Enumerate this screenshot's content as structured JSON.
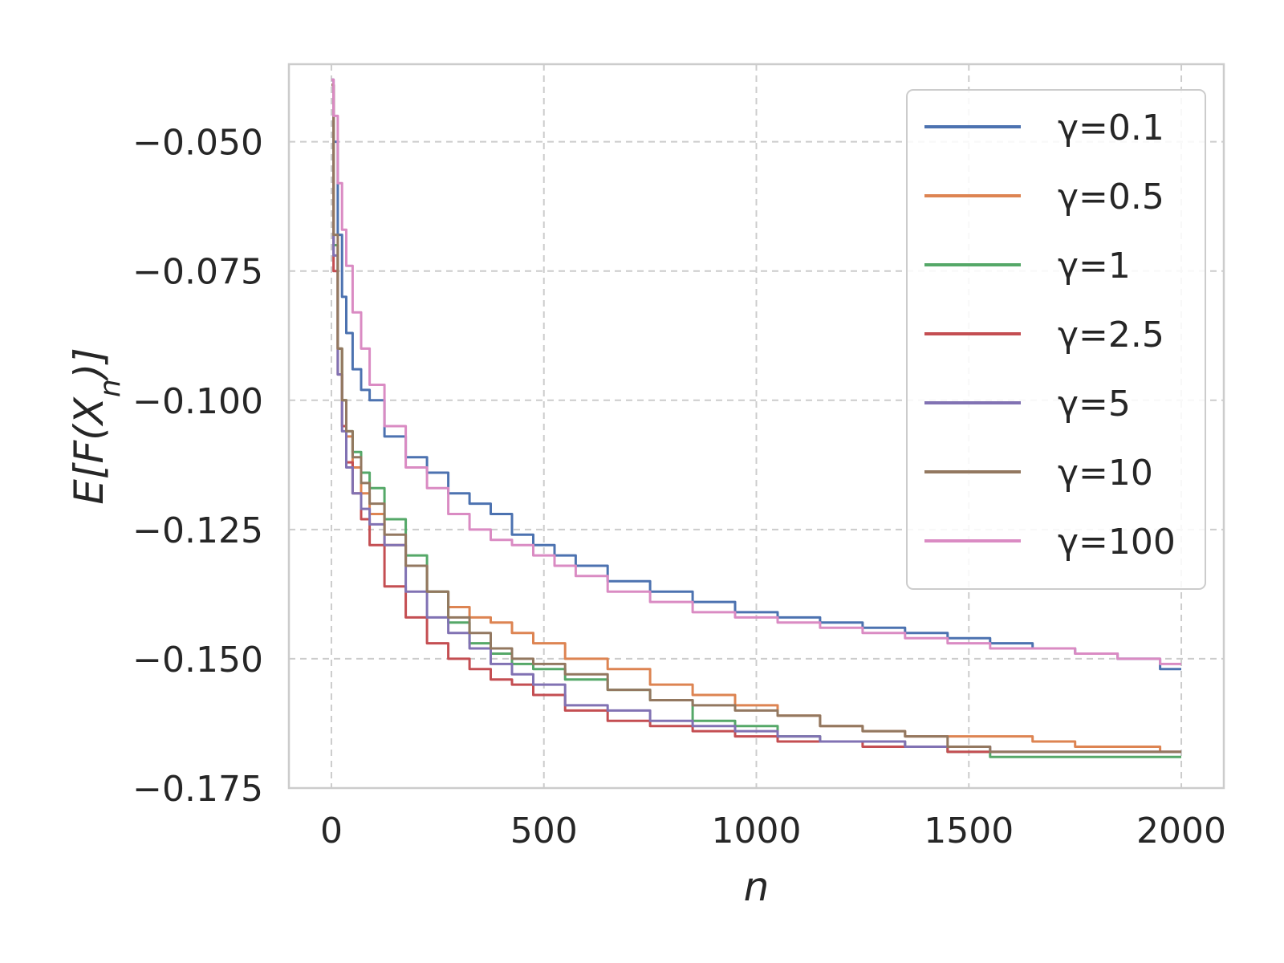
{
  "chart_data": {
    "type": "line",
    "title": "",
    "xlabel": "n",
    "ylabel": "E[F(X_n)]",
    "xlim": [
      -100,
      2100
    ],
    "ylim": [
      -0.175,
      -0.035
    ],
    "xticks": [
      0,
      500,
      1000,
      1500,
      2000
    ],
    "xtick_labels": [
      "0",
      "500",
      "1000",
      "1500",
      "2000"
    ],
    "yticks": [
      -0.05,
      -0.075,
      -0.1,
      -0.125,
      -0.15,
      -0.175
    ],
    "ytick_labels": [
      "−0.050",
      "−0.075",
      "−0.100",
      "−0.125",
      "−0.150",
      "−0.175"
    ],
    "grid": true,
    "legend_position": "top-right",
    "series": [
      {
        "name": "γ=0.1",
        "color": "#4c72b0",
        "x": [
          0,
          10,
          20,
          30,
          40,
          60,
          80,
          100,
          150,
          200,
          250,
          300,
          350,
          400,
          450,
          500,
          550,
          600,
          700,
          800,
          900,
          1000,
          1100,
          1200,
          1300,
          1400,
          1500,
          1600,
          1700,
          1800,
          1900,
          2000
        ],
        "y": [
          -0.038,
          -0.05,
          -0.068,
          -0.08,
          -0.087,
          -0.094,
          -0.098,
          -0.1,
          -0.107,
          -0.111,
          -0.114,
          -0.118,
          -0.12,
          -0.122,
          -0.126,
          -0.128,
          -0.13,
          -0.132,
          -0.135,
          -0.137,
          -0.139,
          -0.141,
          -0.142,
          -0.143,
          -0.144,
          -0.145,
          -0.146,
          -0.147,
          -0.148,
          -0.149,
          -0.15,
          -0.152
        ]
      },
      {
        "name": "γ=0.5",
        "color": "#dd8452",
        "x": [
          0,
          10,
          20,
          30,
          40,
          60,
          80,
          100,
          150,
          200,
          250,
          300,
          350,
          400,
          450,
          500,
          600,
          700,
          800,
          900,
          1000,
          1100,
          1200,
          1300,
          1400,
          1500,
          1600,
          1700,
          1800,
          1900,
          2000
        ],
        "y": [
          -0.039,
          -0.07,
          -0.09,
          -0.1,
          -0.107,
          -0.113,
          -0.118,
          -0.122,
          -0.128,
          -0.132,
          -0.137,
          -0.14,
          -0.142,
          -0.143,
          -0.145,
          -0.147,
          -0.15,
          -0.152,
          -0.155,
          -0.157,
          -0.159,
          -0.161,
          -0.163,
          -0.164,
          -0.165,
          -0.165,
          -0.165,
          -0.166,
          -0.167,
          -0.167,
          -0.168
        ]
      },
      {
        "name": "γ=1",
        "color": "#55a868",
        "x": [
          0,
          10,
          20,
          30,
          40,
          60,
          80,
          100,
          150,
          200,
          250,
          300,
          350,
          400,
          450,
          500,
          600,
          700,
          800,
          900,
          1000,
          1100,
          1200,
          1300,
          1400,
          1500,
          1600,
          1700,
          1800,
          1900,
          2000
        ],
        "y": [
          -0.039,
          -0.07,
          -0.09,
          -0.1,
          -0.106,
          -0.11,
          -0.114,
          -0.117,
          -0.123,
          -0.13,
          -0.137,
          -0.143,
          -0.147,
          -0.149,
          -0.151,
          -0.152,
          -0.154,
          -0.156,
          -0.158,
          -0.162,
          -0.163,
          -0.165,
          -0.166,
          -0.166,
          -0.167,
          -0.168,
          -0.169,
          -0.169,
          -0.169,
          -0.169,
          -0.169
        ]
      },
      {
        "name": "γ=2.5",
        "color": "#c44e52",
        "x": [
          0,
          10,
          20,
          30,
          40,
          60,
          80,
          100,
          150,
          200,
          250,
          300,
          350,
          400,
          450,
          500,
          600,
          700,
          800,
          900,
          1000,
          1100,
          1200,
          1300,
          1400,
          1500,
          1600,
          1700,
          1800,
          1900,
          2000
        ],
        "y": [
          -0.039,
          -0.075,
          -0.095,
          -0.105,
          -0.112,
          -0.118,
          -0.123,
          -0.128,
          -0.136,
          -0.142,
          -0.147,
          -0.15,
          -0.152,
          -0.154,
          -0.155,
          -0.157,
          -0.16,
          -0.162,
          -0.163,
          -0.164,
          -0.165,
          -0.166,
          -0.166,
          -0.167,
          -0.167,
          -0.168,
          -0.168,
          -0.168,
          -0.168,
          -0.168,
          -0.168
        ]
      },
      {
        "name": "γ=5",
        "color": "#8172b3",
        "x": [
          0,
          10,
          20,
          30,
          40,
          60,
          80,
          100,
          150,
          200,
          250,
          300,
          350,
          400,
          450,
          500,
          600,
          700,
          800,
          900,
          1000,
          1100,
          1200,
          1300,
          1400,
          1500,
          1600,
          1700,
          1800,
          1900,
          2000
        ],
        "y": [
          -0.039,
          -0.072,
          -0.095,
          -0.106,
          -0.113,
          -0.118,
          -0.121,
          -0.124,
          -0.128,
          -0.137,
          -0.142,
          -0.145,
          -0.148,
          -0.151,
          -0.153,
          -0.155,
          -0.159,
          -0.16,
          -0.162,
          -0.163,
          -0.164,
          -0.165,
          -0.166,
          -0.166,
          -0.167,
          -0.167,
          -0.168,
          -0.168,
          -0.168,
          -0.168,
          -0.168
        ]
      },
      {
        "name": "γ=10",
        "color": "#937860",
        "x": [
          0,
          10,
          20,
          30,
          40,
          60,
          80,
          100,
          150,
          200,
          250,
          300,
          350,
          400,
          450,
          500,
          600,
          700,
          800,
          900,
          1000,
          1100,
          1200,
          1300,
          1400,
          1500,
          1600,
          1700,
          1800,
          1900,
          2000
        ],
        "y": [
          -0.039,
          -0.068,
          -0.09,
          -0.1,
          -0.106,
          -0.111,
          -0.116,
          -0.12,
          -0.126,
          -0.132,
          -0.137,
          -0.142,
          -0.145,
          -0.148,
          -0.15,
          -0.151,
          -0.153,
          -0.156,
          -0.158,
          -0.159,
          -0.16,
          -0.161,
          -0.163,
          -0.164,
          -0.165,
          -0.167,
          -0.168,
          -0.168,
          -0.168,
          -0.168,
          -0.168
        ]
      },
      {
        "name": "γ=100",
        "color": "#da8bc3",
        "x": [
          0,
          10,
          20,
          30,
          40,
          60,
          80,
          100,
          150,
          200,
          250,
          300,
          350,
          400,
          450,
          500,
          550,
          600,
          700,
          800,
          900,
          1000,
          1100,
          1200,
          1300,
          1400,
          1500,
          1600,
          1700,
          1800,
          1900,
          2000
        ],
        "y": [
          -0.038,
          -0.045,
          -0.058,
          -0.067,
          -0.074,
          -0.083,
          -0.09,
          -0.097,
          -0.105,
          -0.113,
          -0.117,
          -0.122,
          -0.125,
          -0.127,
          -0.128,
          -0.13,
          -0.132,
          -0.134,
          -0.137,
          -0.139,
          -0.141,
          -0.142,
          -0.143,
          -0.144,
          -0.145,
          -0.146,
          -0.147,
          -0.148,
          -0.148,
          -0.149,
          -0.15,
          -0.151
        ]
      }
    ]
  }
}
